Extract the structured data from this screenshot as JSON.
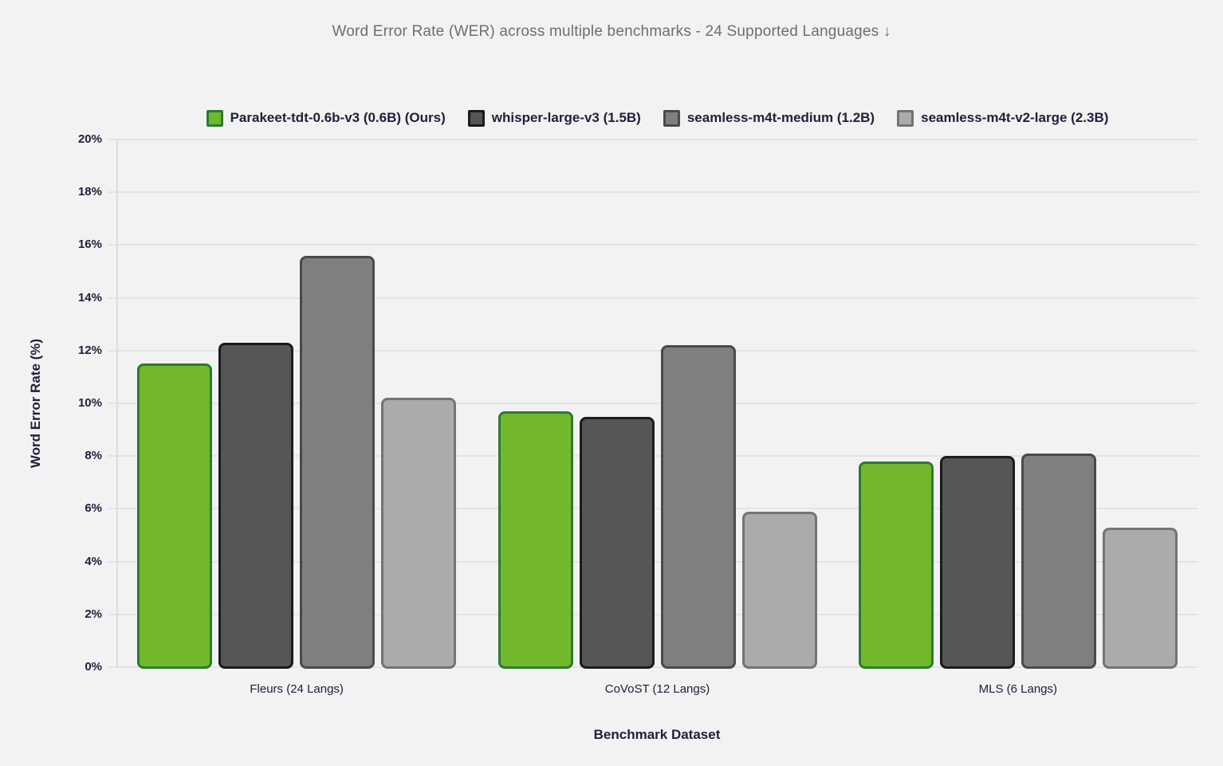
{
  "chart_data": {
    "type": "bar",
    "title": "Word Error Rate (WER) across multiple benchmarks - 24 Supported Languages ↓",
    "xlabel": "Benchmark Dataset",
    "ylabel": "Word Error Rate (%)",
    "ylim": [
      0,
      20
    ],
    "ytick_step": 2,
    "ytick_labels": [
      "0%",
      "2%",
      "4%",
      "6%",
      "8%",
      "10%",
      "12%",
      "14%",
      "16%",
      "18%",
      "20%"
    ],
    "grid": true,
    "legend_position": "top",
    "categories": [
      "Fleurs (24 Langs)",
      "CoVoST (12 Langs)",
      "MLS (6 Langs)"
    ],
    "series": [
      {
        "name": "Parakeet-tdt-0.6b-v3 (0.6B) (Ours)",
        "values": [
          11.5,
          9.7,
          7.8
        ],
        "fill": "#73b82c",
        "border": "#2c7a33"
      },
      {
        "name": "whisper-large-v3 (1.5B)",
        "values": [
          12.3,
          9.5,
          8.0
        ],
        "fill": "#565656",
        "border": "#1b1b1b"
      },
      {
        "name": "seamless-m4t-medium (1.2B)",
        "values": [
          15.6,
          12.2,
          8.1
        ],
        "fill": "#7f7f7f",
        "border": "#4a4a4a"
      },
      {
        "name": "seamless-m4t-v2-large (2.3B)",
        "values": [
          10.2,
          5.9,
          5.3
        ],
        "fill": "#ababab",
        "border": "#737373"
      }
    ],
    "colors": {
      "background": "#f2f2f3",
      "gridline": "#e4e4e6",
      "axis_text": "#20203a",
      "title_text": "#6e6e72"
    }
  }
}
